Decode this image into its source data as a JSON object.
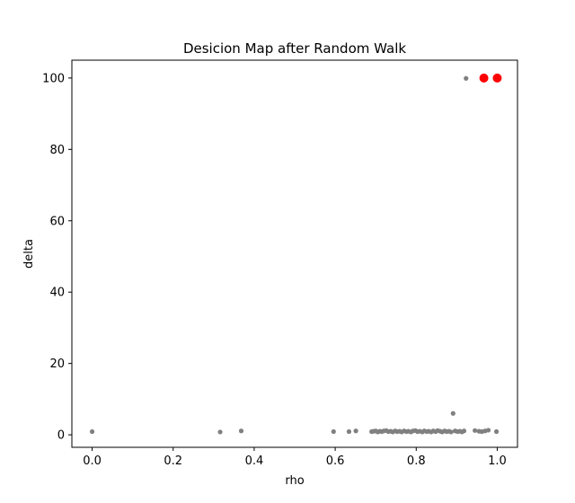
{
  "chart_data": {
    "type": "scatter",
    "title": "Desicion Map after Random Walk",
    "xlabel": "rho",
    "ylabel": "delta",
    "xlim": [
      -0.05,
      1.05
    ],
    "ylim": [
      -3.5,
      105
    ],
    "xticks": [
      0.0,
      0.2,
      0.4,
      0.6,
      0.8,
      1.0
    ],
    "xtick_labels": [
      "0.0",
      "0.2",
      "0.4",
      "0.6",
      "0.8",
      "1.0"
    ],
    "yticks": [
      0,
      20,
      40,
      60,
      80,
      100
    ],
    "ytick_labels": [
      "0",
      "20",
      "40",
      "60",
      "80",
      "100"
    ],
    "grid": false,
    "colors": {
      "points": "#808080",
      "centers": "#ff0000"
    },
    "series": [
      {
        "color": "#808080",
        "points": [
          [
            0.0,
            0.9
          ],
          [
            0.316,
            0.8
          ],
          [
            0.368,
            1.1
          ],
          [
            0.596,
            0.9
          ],
          [
            0.634,
            0.9
          ],
          [
            0.651,
            1.1
          ],
          [
            0.69,
            0.9
          ],
          [
            0.695,
            1.0
          ],
          [
            0.7,
            1.1
          ],
          [
            0.705,
            0.8
          ],
          [
            0.71,
            1.0
          ],
          [
            0.715,
            0.9
          ],
          [
            0.72,
            1.1
          ],
          [
            0.726,
            1.2
          ],
          [
            0.731,
            0.9
          ],
          [
            0.737,
            1.0
          ],
          [
            0.742,
            0.8
          ],
          [
            0.748,
            1.1
          ],
          [
            0.753,
            0.9
          ],
          [
            0.759,
            1.0
          ],
          [
            0.764,
            0.8
          ],
          [
            0.77,
            1.1
          ],
          [
            0.776,
            0.9
          ],
          [
            0.781,
            1.0
          ],
          [
            0.787,
            0.8
          ],
          [
            0.792,
            1.1
          ],
          [
            0.798,
            1.2
          ],
          [
            0.803,
            0.9
          ],
          [
            0.809,
            1.0
          ],
          [
            0.815,
            0.8
          ],
          [
            0.82,
            1.1
          ],
          [
            0.826,
            0.9
          ],
          [
            0.831,
            1.0
          ],
          [
            0.837,
            0.8
          ],
          [
            0.842,
            1.1
          ],
          [
            0.848,
            0.9
          ],
          [
            0.853,
            1.2
          ],
          [
            0.859,
            1.0
          ],
          [
            0.864,
            0.8
          ],
          [
            0.87,
            1.1
          ],
          [
            0.875,
            0.9
          ],
          [
            0.881,
            1.0
          ],
          [
            0.886,
            0.8
          ],
          [
            0.891,
            6.0
          ],
          [
            0.896,
            1.1
          ],
          [
            0.902,
            0.9
          ],
          [
            0.908,
            1.0
          ],
          [
            0.913,
            0.8
          ],
          [
            0.918,
            1.1
          ],
          [
            0.923,
            99.9
          ],
          [
            0.945,
            1.2
          ],
          [
            0.955,
            1.0
          ],
          [
            0.962,
            0.9
          ],
          [
            0.97,
            1.1
          ],
          [
            0.978,
            1.3
          ],
          [
            0.998,
            0.9
          ]
        ]
      },
      {
        "color": "#ff0000",
        "points": [
          [
            0.967,
            100.0
          ],
          [
            1.0,
            100.0
          ]
        ]
      }
    ]
  }
}
